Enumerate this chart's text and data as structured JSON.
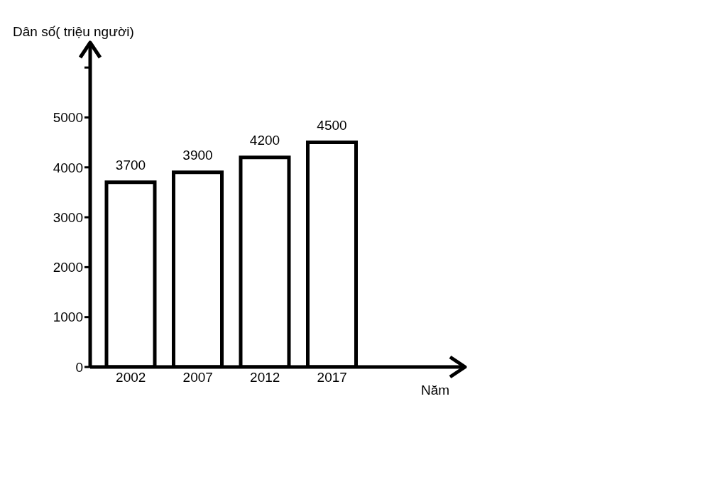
{
  "chart_data": {
    "type": "bar",
    "xlabel": "Năm",
    "ylabel": "Dân số( triệu người)",
    "categories": [
      "2002",
      "2007",
      "2012",
      "2017"
    ],
    "values": [
      3700,
      3900,
      4200,
      4500
    ],
    "color": "#000000",
    "ylim": [
      0,
      6500
    ],
    "yticks": [
      0,
      1000,
      2000,
      3000,
      4000,
      5000,
      {
        "value": 6000,
        "label": null
      }
    ],
    "data_labels": true,
    "grid": false,
    "legend": false
  }
}
